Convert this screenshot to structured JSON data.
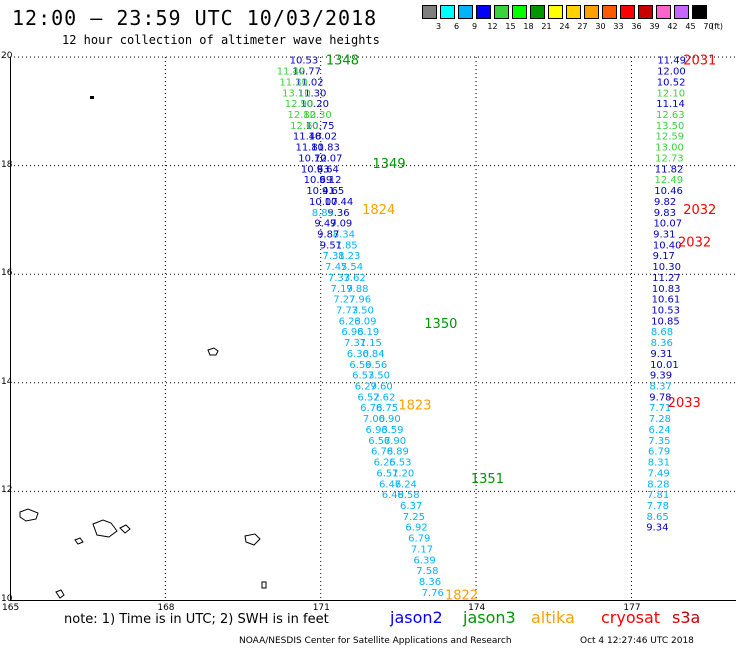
{
  "header": {
    "title": "12:00 – 23:59 UTC 10/03/2018",
    "subtitle": "12 hour collection of altimeter wave heights"
  },
  "color_scale": {
    "unit": "(ft)",
    "bins": [
      {
        "label": "3",
        "color": "#7f7f7f"
      },
      {
        "label": "6",
        "color": "#00ffff"
      },
      {
        "label": "9",
        "color": "#00b4ff"
      },
      {
        "label": "12",
        "color": "#0000ff"
      },
      {
        "label": "15",
        "color": "#3cd23c"
      },
      {
        "label": "18",
        "color": "#00ff00"
      },
      {
        "label": "21",
        "color": "#009600"
      },
      {
        "label": "24",
        "color": "#ffff00"
      },
      {
        "label": "27",
        "color": "#ffd200"
      },
      {
        "label": "30",
        "color": "#ffa000"
      },
      {
        "label": "33",
        "color": "#ff5a00"
      },
      {
        "label": "36",
        "color": "#ff0000"
      },
      {
        "label": "39",
        "color": "#c80000"
      },
      {
        "label": "42",
        "color": "#ff64c8"
      },
      {
        "label": "45",
        "color": "#c864ff"
      },
      {
        "label": "70",
        "color": "#000000"
      }
    ]
  },
  "axes": {
    "lat_labels": [
      "20",
      "18",
      "16",
      "14",
      "12",
      "10"
    ],
    "lat_values": [
      20,
      18,
      16,
      14,
      12,
      10
    ],
    "lon_labels": [
      "165",
      "168",
      "171",
      "174",
      "177"
    ],
    "lon_values": [
      165,
      168,
      171,
      174,
      177
    ],
    "lon_range": [
      165,
      179
    ],
    "lat_range": [
      10,
      20
    ]
  },
  "colors": {
    "sw": "#00b4ff",
    "swlg": "#3cd23c",
    "swdk": "#0000c8",
    "jason2": "#0000ff",
    "jason3": "#009600",
    "altika": "#ffa000",
    "cryosat": "#ff0000",
    "s3a": "#c80000"
  },
  "time_labels": [
    {
      "text": "1348",
      "lon": 171.1,
      "lat": 19.95,
      "color": "jason3"
    },
    {
      "text": "1349",
      "lon": 172.0,
      "lat": 18.05,
      "color": "jason3"
    },
    {
      "text": "1824",
      "lon": 171.8,
      "lat": 17.2,
      "color": "altika"
    },
    {
      "text": "1350",
      "lon": 173.0,
      "lat": 15.1,
      "color": "jason3"
    },
    {
      "text": "1823",
      "lon": 172.5,
      "lat": 13.6,
      "color": "altika"
    },
    {
      "text": "1351",
      "lon": 173.9,
      "lat": 12.25,
      "color": "jason3"
    },
    {
      "text": "1822",
      "lon": 173.4,
      "lat": 10.1,
      "color": "altika"
    },
    {
      "text": "2031",
      "lon": 178.0,
      "lat": 19.95,
      "color": "cryosat"
    },
    {
      "text": "2032",
      "lon": 178.0,
      "lat": 17.2,
      "color": "cryosat"
    },
    {
      "text": "2032",
      "lon": 177.9,
      "lat": 16.6,
      "color": "cryosat"
    },
    {
      "text": "2033",
      "lon": 177.7,
      "lat": 13.65,
      "color": "cryosat"
    }
  ],
  "tracks": [
    {
      "name": "jason3-track",
      "start": {
        "lon": 170.4,
        "lat": 19.95
      },
      "step": {
        "dlon": 0.052,
        "dlat": -0.2
      },
      "points": [
        {
          "v": "10.53",
          "c": "swdk"
        },
        {
          "v": "10.77",
          "c": "swdk"
        },
        {
          "v": "11.02",
          "c": "swdk"
        },
        {
          "v": "11.30",
          "c": "swdk"
        },
        {
          "v": "10.20",
          "c": "swdk"
        },
        {
          "v": "12.30",
          "c": "swlg"
        },
        {
          "v": "10.75",
          "c": "swdk"
        },
        {
          "v": "10.02",
          "c": "swdk"
        },
        {
          "v": "10.83",
          "c": "swdk"
        },
        {
          "v": "10.07",
          "c": "swdk"
        },
        {
          "v": "9.64",
          "c": "swdk"
        },
        {
          "v": "9.12",
          "c": "swdk"
        },
        {
          "v": "9.65",
          "c": "swdk"
        },
        {
          "v": "10.44",
          "c": "swdk"
        },
        {
          "v": "9.36",
          "c": "swdk"
        },
        {
          "v": "9.09",
          "c": "swdk"
        },
        {
          "v": "8.34",
          "c": "sw"
        },
        {
          "v": "7.85",
          "c": "sw"
        },
        {
          "v": "8.23",
          "c": "sw"
        },
        {
          "v": "7.54",
          "c": "sw"
        },
        {
          "v": "7.62",
          "c": "sw"
        },
        {
          "v": "7.88",
          "c": "sw"
        },
        {
          "v": "7.96",
          "c": "sw"
        },
        {
          "v": "7.50",
          "c": "sw"
        },
        {
          "v": "6.09",
          "c": "sw"
        },
        {
          "v": "6.19",
          "c": "sw"
        },
        {
          "v": "7.15",
          "c": "sw"
        },
        {
          "v": "6.84",
          "c": "sw"
        },
        {
          "v": "6.56",
          "c": "sw"
        },
        {
          "v": "7.50",
          "c": "sw"
        },
        {
          "v": "7.60",
          "c": "sw"
        },
        {
          "v": "7.62",
          "c": "sw"
        },
        {
          "v": "6.75",
          "c": "sw"
        },
        {
          "v": "6.90",
          "c": "sw"
        },
        {
          "v": "6.59",
          "c": "sw"
        },
        {
          "v": "6.90",
          "c": "sw"
        },
        {
          "v": "6.89",
          "c": "sw"
        },
        {
          "v": "6.53",
          "c": "sw"
        },
        {
          "v": "7.20",
          "c": "sw"
        },
        {
          "v": "7.24",
          "c": "sw"
        },
        {
          "v": "6.58",
          "c": "sw"
        },
        {
          "v": "6.37",
          "c": "sw"
        },
        {
          "v": "7.25",
          "c": "sw"
        },
        {
          "v": "6.92",
          "c": "sw"
        },
        {
          "v": "6.79",
          "c": "sw"
        },
        {
          "v": "7.17",
          "c": "sw"
        },
        {
          "v": "6.39",
          "c": "sw"
        },
        {
          "v": "7.58",
          "c": "sw"
        },
        {
          "v": "8.36",
          "c": "sw"
        },
        {
          "v": "7.76",
          "c": "sw"
        }
      ]
    },
    {
      "name": "jason2-track",
      "start": {
        "lon": 170.15,
        "lat": 19.75
      },
      "step": {
        "dlon": 0.052,
        "dlat": -0.2
      },
      "points": [
        {
          "v": "11.42",
          "c": "swlg"
        },
        {
          "v": "11.30",
          "c": "swlg"
        },
        {
          "v": "13.10",
          "c": "swlg"
        },
        {
          "v": "12.90",
          "c": "swlg"
        },
        {
          "v": "12.80",
          "c": "swlg"
        },
        {
          "v": "12.60",
          "c": "swlg"
        },
        {
          "v": "11.48",
          "c": "swdk"
        },
        {
          "v": "11.81",
          "c": "swdk"
        },
        {
          "v": "10.72",
          "c": "swdk"
        },
        {
          "v": "10.63",
          "c": "swdk"
        },
        {
          "v": "10.69",
          "c": "swdk"
        },
        {
          "v": "10.41",
          "c": "swdk"
        },
        {
          "v": "10.07",
          "c": "swdk"
        },
        {
          "v": "8.85",
          "c": "sw"
        },
        {
          "v": "9.47",
          "c": "swdk"
        },
        {
          "v": "9.87",
          "c": "swdk"
        },
        {
          "v": "9.51",
          "c": "swdk"
        },
        {
          "v": "7.31",
          "c": "sw"
        },
        {
          "v": "7.45",
          "c": "sw"
        },
        {
          "v": "7.33",
          "c": "sw"
        },
        {
          "v": "7.19",
          "c": "sw"
        },
        {
          "v": "7.27",
          "c": "sw"
        },
        {
          "v": "7.73",
          "c": "sw"
        },
        {
          "v": "6.23",
          "c": "sw"
        },
        {
          "v": "6.98",
          "c": "sw"
        },
        {
          "v": "7.31",
          "c": "sw"
        },
        {
          "v": "6.30",
          "c": "sw"
        },
        {
          "v": "6.59",
          "c": "sw"
        },
        {
          "v": "6.53",
          "c": "sw"
        },
        {
          "v": "6.29",
          "c": "sw"
        },
        {
          "v": "6.52",
          "c": "sw"
        },
        {
          "v": "6.78",
          "c": "sw"
        },
        {
          "v": "7.00",
          "c": "sw"
        },
        {
          "v": "6.93",
          "c": "sw"
        },
        {
          "v": "6.57",
          "c": "sw"
        },
        {
          "v": "6.78",
          "c": "sw"
        },
        {
          "v": "6.25",
          "c": "sw"
        },
        {
          "v": "6.51",
          "c": "sw"
        },
        {
          "v": "6.46",
          "c": "sw"
        },
        {
          "v": "6.48",
          "c": "sw"
        }
      ]
    },
    {
      "name": "cryosat-track",
      "start": {
        "lon": 177.5,
        "lat": 19.95
      },
      "step": {
        "dlon": -0.005,
        "dlat": -0.2
      },
      "points": [
        {
          "v": "11.49",
          "c": "swdk"
        },
        {
          "v": "12.00",
          "c": "swdk"
        },
        {
          "v": "10.52",
          "c": "swdk"
        },
        {
          "v": "12.10",
          "c": "swlg"
        },
        {
          "v": "11.14",
          "c": "swdk"
        },
        {
          "v": "12.63",
          "c": "swlg"
        },
        {
          "v": "13.50",
          "c": "swlg"
        },
        {
          "v": "12.59",
          "c": "swlg"
        },
        {
          "v": "13.00",
          "c": "swlg"
        },
        {
          "v": "12.73",
          "c": "swlg"
        },
        {
          "v": "11.82",
          "c": "swdk"
        },
        {
          "v": "12.49",
          "c": "swlg"
        },
        {
          "v": "10.46",
          "c": "swdk"
        },
        {
          "v": "9.82",
          "c": "swdk"
        },
        {
          "v": "9.83",
          "c": "swdk"
        },
        {
          "v": "10.07",
          "c": "swdk"
        },
        {
          "v": "9.31",
          "c": "swdk"
        },
        {
          "v": "10.40",
          "c": "swdk"
        },
        {
          "v": "9.17",
          "c": "swdk"
        },
        {
          "v": "10.30",
          "c": "swdk"
        },
        {
          "v": "11.27",
          "c": "swdk"
        },
        {
          "v": "10.83",
          "c": "swdk"
        },
        {
          "v": "10.61",
          "c": "swdk"
        },
        {
          "v": "10.53",
          "c": "swdk"
        },
        {
          "v": "10.85",
          "c": "swdk"
        },
        {
          "v": "8.68",
          "c": "sw"
        },
        {
          "v": "8.36",
          "c": "sw"
        },
        {
          "v": "9.31",
          "c": "swdk"
        },
        {
          "v": "10.01",
          "c": "swdk"
        },
        {
          "v": "9.39",
          "c": "swdk"
        },
        {
          "v": "8.37",
          "c": "sw"
        },
        {
          "v": "9.78",
          "c": "swdk"
        },
        {
          "v": "7.71",
          "c": "sw"
        },
        {
          "v": "7.28",
          "c": "sw"
        },
        {
          "v": "6.24",
          "c": "sw"
        },
        {
          "v": "7.35",
          "c": "sw"
        },
        {
          "v": "6.79",
          "c": "sw"
        },
        {
          "v": "8.31",
          "c": "sw"
        },
        {
          "v": "7.49",
          "c": "sw"
        },
        {
          "v": "8.28",
          "c": "sw"
        },
        {
          "v": "7.81",
          "c": "sw"
        },
        {
          "v": "7.78",
          "c": "sw"
        },
        {
          "v": "8.65",
          "c": "sw"
        },
        {
          "v": "9.34",
          "c": "swdk"
        }
      ]
    }
  ],
  "footer": {
    "note": "note:  1) Time is in UTC;  2) SWH is in feet",
    "legend": [
      {
        "label": "jason2",
        "color": "#0000ff"
      },
      {
        "label": "jason3",
        "color": "#009600"
      },
      {
        "label": "altika",
        "color": "#ffa000"
      },
      {
        "label": "cryosat",
        "color": "#ff0000"
      },
      {
        "label": "s3a",
        "color": "#c80000"
      }
    ],
    "credit": "NOAA/NESDIS Center for Satellite Applications and Research",
    "timestamp": "Oct  4 12:27:46 UTC 2018"
  }
}
